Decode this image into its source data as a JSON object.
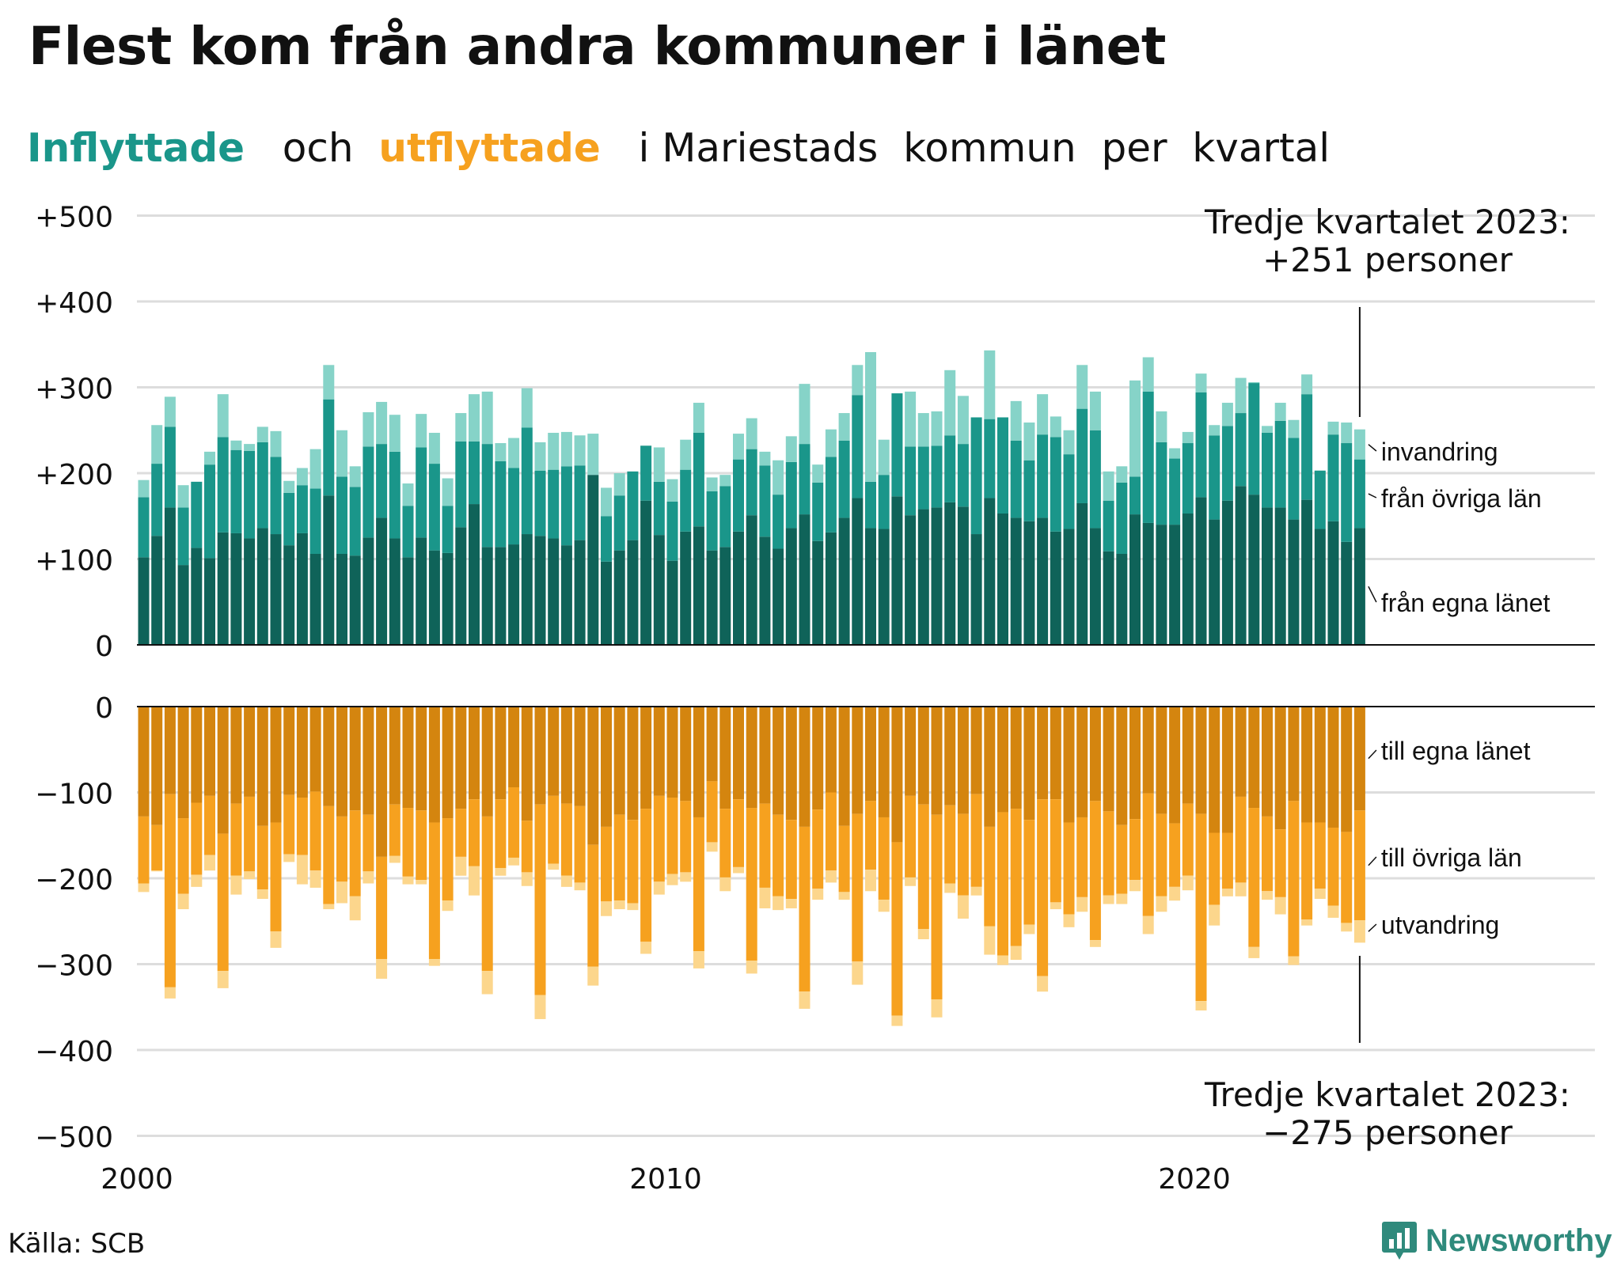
{
  "title": "Flest kom från andra kommuner i länet",
  "subtitle": {
    "in_word": "Inflyttade",
    "joiner": "och",
    "out_word": "utflyttade",
    "rest": "i Mariestads  kommun  per  kvartal"
  },
  "colors": {
    "in_own": "#0f6359",
    "in_other": "#1a968a",
    "in_immig": "#86d3c8",
    "out_own": "#d4850f",
    "out_other": "#f6a11f",
    "out_emig": "#fcd68c",
    "title_in": "#1a968a",
    "title_out": "#f6a11f",
    "brand": "#2f8a7c",
    "grid": "#dddddd"
  },
  "annotation_top": {
    "line1": "Tredje kvartalet 2023:",
    "line2": "+251 personer"
  },
  "annotation_bottom": {
    "line1": "Tredje kvartalet 2023:",
    "line2": "−275 personer"
  },
  "source": "Källa: SCB",
  "brand": "Newsworthy",
  "brand_icon": "newsworthy-bar-icon",
  "chart_data": [
    {
      "type": "bar",
      "stacked": true,
      "panel": "inflyttade",
      "x_start": "2000 Q1",
      "x_end": "2023 Q3",
      "xlabel": "",
      "ylabel": "",
      "ylim": [
        0,
        500
      ],
      "yticks": [
        "0",
        "+100",
        "+200",
        "+300",
        "+400",
        "+500"
      ],
      "xticks": [
        "2000",
        "2010",
        "2020"
      ],
      "legend": "labels at right of last bar",
      "series": [
        {
          "name": "från egna länet",
          "values": [
            102,
            127,
            160,
            93,
            113,
            101,
            131,
            130,
            124,
            136,
            129,
            116,
            130,
            106,
            174,
            106,
            104,
            125,
            148,
            124,
            102,
            125,
            110,
            107,
            137,
            164,
            114,
            114,
            117,
            129,
            127,
            124,
            116,
            122,
            198,
            97,
            110,
            122,
            168,
            128,
            98,
            132,
            138,
            110,
            114,
            132,
            151,
            126,
            112,
            136,
            152,
            121,
            131,
            148,
            171,
            136,
            135,
            173,
            151,
            158,
            160,
            166,
            161,
            129,
            171,
            153,
            148,
            144,
            148,
            132,
            135,
            165,
            136,
            109,
            106,
            152,
            142,
            140,
            140,
            153,
            172,
            146,
            168,
            185,
            175,
            160,
            160,
            146,
            169,
            135,
            144,
            120,
            136
          ],
          "values_label_hint": ""
        },
        {
          "name": "från övriga län",
          "values": [
            70,
            84,
            94,
            67,
            77,
            109,
            111,
            97,
            102,
            100,
            90,
            61,
            56,
            76,
            112,
            90,
            80,
            106,
            86,
            101,
            60,
            105,
            101,
            55,
            100,
            73,
            120,
            100,
            89,
            124,
            76,
            80,
            92,
            87,
            0,
            53,
            64,
            80,
            64,
            62,
            69,
            72,
            109,
            69,
            71,
            84,
            77,
            83,
            63,
            77,
            82,
            68,
            88,
            90,
            120,
            54,
            63,
            120,
            80,
            73,
            72,
            78,
            73,
            136,
            92,
            112,
            90,
            71,
            97,
            110,
            87,
            110,
            114,
            59,
            83,
            44,
            153,
            96,
            77,
            82,
            122,
            98,
            87,
            85,
            130,
            87,
            101,
            95,
            123,
            68,
            101,
            115,
            80
          ]
        },
        {
          "name": "invandring",
          "values": [
            20,
            45,
            35,
            26,
            0,
            15,
            50,
            11,
            8,
            18,
            30,
            14,
            20,
            46,
            40,
            54,
            24,
            40,
            49,
            43,
            26,
            39,
            36,
            32,
            33,
            55,
            61,
            21,
            35,
            46,
            33,
            43,
            40,
            35,
            48,
            33,
            26,
            0,
            0,
            40,
            26,
            35,
            35,
            16,
            13,
            30,
            36,
            16,
            40,
            30,
            70,
            21,
            32,
            32,
            35,
            151,
            41,
            0,
            64,
            39,
            40,
            76,
            56,
            0,
            80,
            0,
            46,
            44,
            47,
            24,
            28,
            51,
            45,
            34,
            19,
            112,
            40,
            36,
            12,
            13,
            22,
            12,
            27,
            41,
            1,
            8,
            21,
            21,
            23,
            0,
            15,
            24,
            35
          ],
          "values_note": ""
        }
      ]
    },
    {
      "type": "bar",
      "stacked": true,
      "panel": "utflyttade",
      "x_start": "2000 Q1",
      "x_end": "2023 Q3",
      "xlabel": "",
      "ylabel": "",
      "ylim": [
        -500,
        0
      ],
      "yticks": [
        "0",
        "−100",
        "−200",
        "−300",
        "−400",
        "−500"
      ],
      "xticks": [
        "2000",
        "2010",
        "2020"
      ],
      "legend": "labels at right of last bar",
      "series": [
        {
          "name": "till egna länet",
          "values": [
            -128,
            -138,
            -102,
            -130,
            -112,
            -104,
            -148,
            -113,
            -105,
            -139,
            -135,
            -103,
            -106,
            -99,
            -116,
            -128,
            -121,
            -126,
            -175,
            -114,
            -118,
            -121,
            -135,
            -130,
            -119,
            -108,
            -128,
            -108,
            -94,
            -133,
            -114,
            -104,
            -113,
            -116,
            -161,
            -140,
            -126,
            -132,
            -119,
            -104,
            -106,
            -110,
            -129,
            -87,
            -119,
            -108,
            -118,
            -113,
            -126,
            -132,
            -140,
            -120,
            -100,
            -139,
            -125,
            -110,
            -129,
            -158,
            -104,
            -114,
            -126,
            -115,
            -125,
            -102,
            -140,
            -123,
            -119,
            -132,
            -108,
            -108,
            -135,
            -129,
            -110,
            -122,
            -138,
            -131,
            -101,
            -125,
            -136,
            -113,
            -125,
            -147,
            -147,
            -105,
            -118,
            -128,
            -143,
            -110,
            -135,
            -135,
            -141,
            -146,
            -121
          ]
        },
        {
          "name": "till övriga län",
          "values": [
            -78,
            -53,
            -225,
            -88,
            -84,
            -69,
            -160,
            -84,
            -87,
            -74,
            -127,
            -69,
            -67,
            -92,
            -114,
            -76,
            -100,
            -66,
            -119,
            -60,
            -80,
            -81,
            -159,
            -96,
            -56,
            -78,
            -180,
            -80,
            -82,
            -60,
            -222,
            -79,
            -84,
            -89,
            -142,
            -87,
            -100,
            -97,
            -155,
            -100,
            -89,
            -83,
            -156,
            -71,
            -80,
            -79,
            -178,
            -98,
            -95,
            -92,
            -192,
            -92,
            -91,
            -77,
            -172,
            -80,
            -96,
            -202,
            -95,
            -145,
            -215,
            -91,
            -95,
            -108,
            -116,
            -167,
            -160,
            -122,
            -206,
            -120,
            -107,
            -93,
            -162,
            -98,
            -80,
            -71,
            -143,
            -96,
            -74,
            -84,
            -218,
            -84,
            -65,
            -100,
            -162,
            -87,
            -79,
            -181,
            -113,
            -77,
            -91,
            -106,
            -128
          ]
        },
        {
          "name": "utvandring",
          "values": [
            -10,
            -1,
            -13,
            -18,
            -14,
            -18,
            -20,
            -22,
            -9,
            -11,
            -19,
            -9,
            -34,
            -20,
            -6,
            -25,
            -28,
            -14,
            -23,
            -8,
            -9,
            -5,
            -8,
            -12,
            -22,
            -34,
            -27,
            -9,
            -9,
            -16,
            -28,
            -7,
            -13,
            -9,
            -22,
            -17,
            -10,
            -8,
            -14,
            -15,
            -13,
            -11,
            -20,
            -11,
            -16,
            -7,
            -15,
            -24,
            -16,
            -11,
            -20,
            -13,
            -14,
            -9,
            -27,
            -25,
            -14,
            -12,
            -10,
            -12,
            -21,
            -11,
            -27,
            -10,
            -33,
            -11,
            -16,
            -11,
            -18,
            -8,
            -15,
            -17,
            -8,
            -10,
            -12,
            -13,
            -21,
            -18,
            -16,
            -17,
            -11,
            -24,
            -9,
            -16,
            -13,
            -10,
            -20,
            -10,
            -7,
            -12,
            -14,
            -10,
            -26
          ]
        }
      ]
    }
  ]
}
